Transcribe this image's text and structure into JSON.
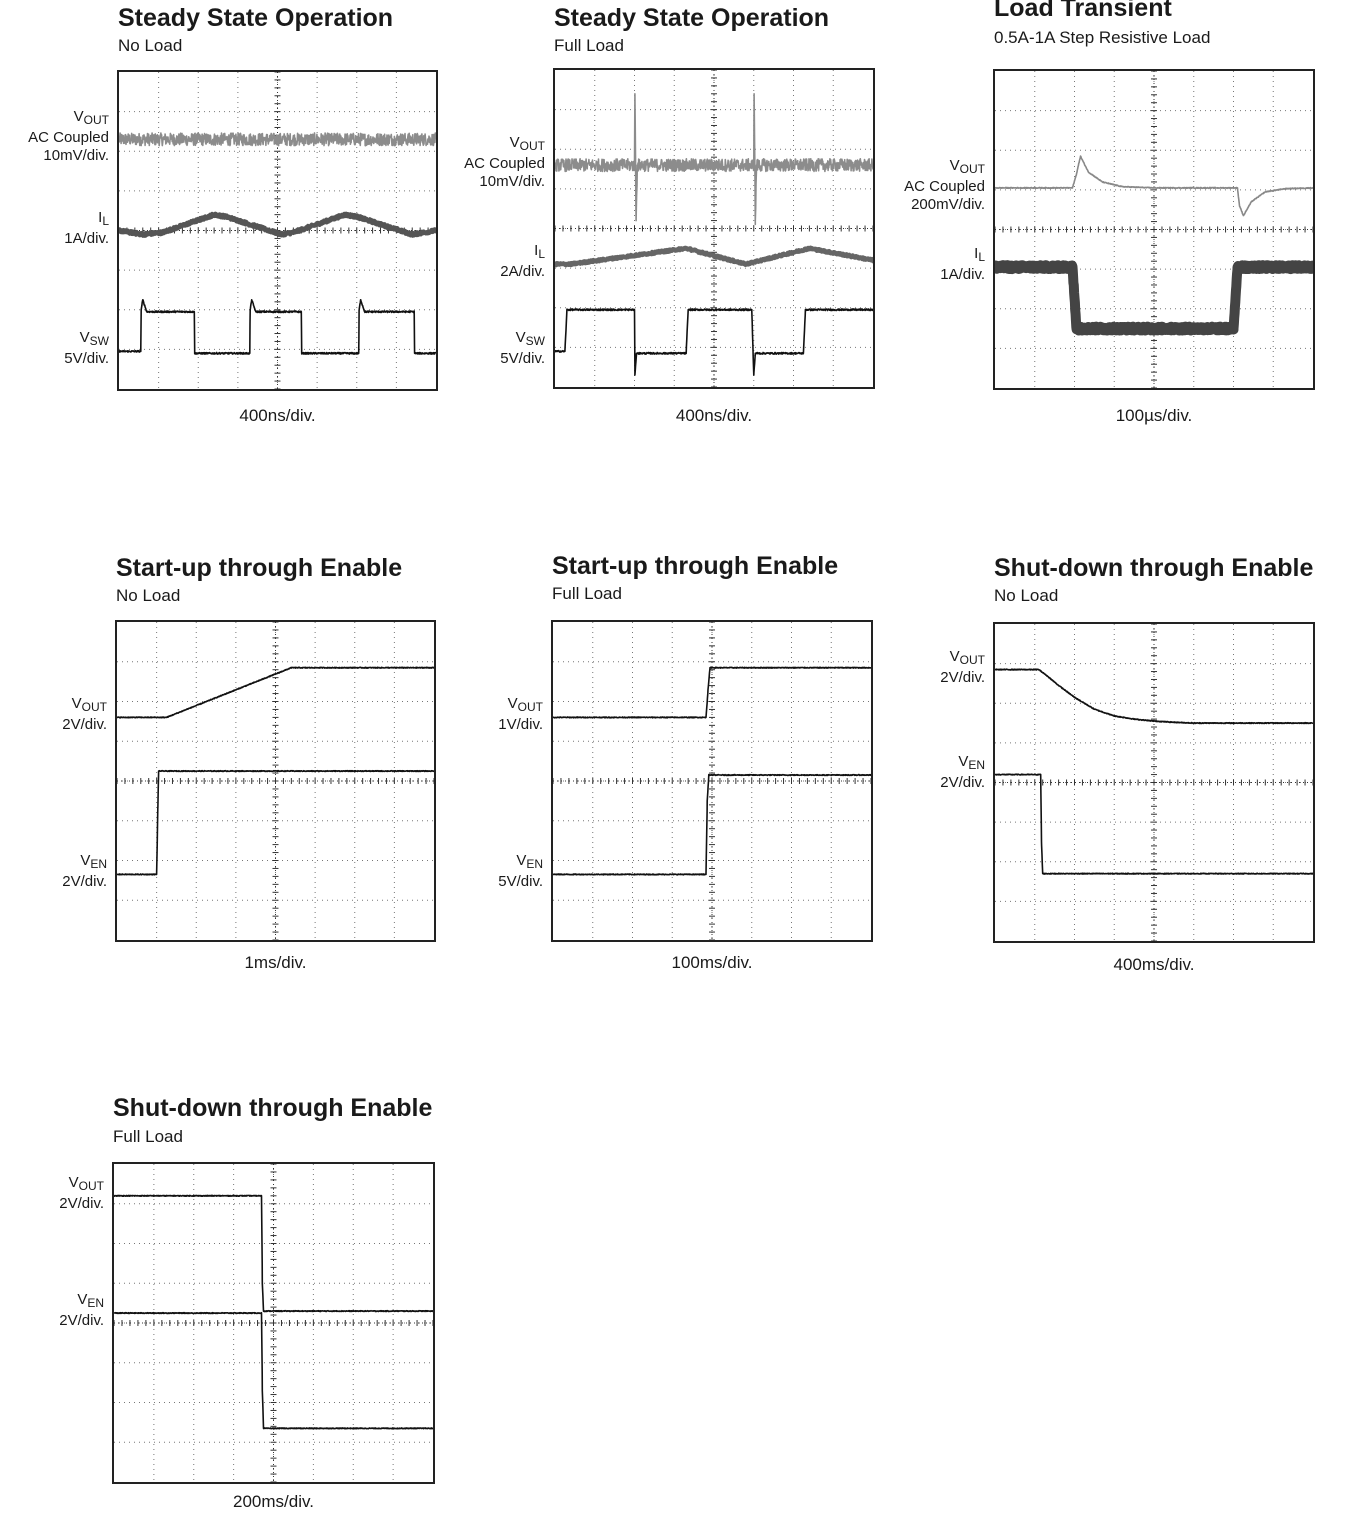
{
  "chart_data": [
    {
      "type": "line",
      "title": "Steady State Operation",
      "subtitle": "No Load",
      "timebase": "400ns/div.",
      "grid": true,
      "divisions": {
        "x": 8,
        "y": 8
      },
      "series": [
        {
          "name": "VOUT",
          "label_main": "V",
          "label_sub": "OUT",
          "label_lines": [
            "AC Coupled",
            "10mV/div."
          ],
          "color": "#8c8c8c",
          "noise": 0.16,
          "x": [
            0,
            8
          ],
          "y": [
            6.3,
            6.3
          ]
        },
        {
          "name": "IL",
          "label_main": "I",
          "label_sub": "L",
          "label_lines": [
            "1A/div."
          ],
          "color": "#555555",
          "noise": 0.04,
          "thick": 4,
          "x": [
            0,
            0.6,
            1.1,
            2.4,
            2.7,
            4.1,
            4.4,
            5.7,
            6.0,
            7.4,
            8
          ],
          "y": [
            4.0,
            3.9,
            3.95,
            4.4,
            4.35,
            3.9,
            3.95,
            4.4,
            4.35,
            3.9,
            4.0
          ]
        },
        {
          "name": "VSW",
          "label_main": "V",
          "label_sub": "SW",
          "label_lines": [
            "5V/div."
          ],
          "color": "#111111",
          "noise": 0.02,
          "x": [
            0,
            0.55,
            0.56,
            0.6,
            0.7,
            1.9,
            1.91,
            3.3,
            3.31,
            3.35,
            3.45,
            4.6,
            4.61,
            6.05,
            6.06,
            6.1,
            6.2,
            7.45,
            7.46,
            8
          ],
          "y": [
            0.95,
            0.95,
            2.0,
            2.25,
            1.95,
            1.95,
            0.9,
            0.9,
            2.0,
            2.25,
            1.95,
            1.95,
            0.9,
            0.9,
            2.0,
            2.25,
            1.95,
            1.95,
            0.9,
            0.9
          ]
        }
      ]
    },
    {
      "type": "line",
      "title": "Steady State Operation",
      "subtitle": "Full Load",
      "timebase": "400ns/div.",
      "grid": true,
      "divisions": {
        "x": 8,
        "y": 8
      },
      "series": [
        {
          "name": "VOUT",
          "label_main": "V",
          "label_sub": "OUT",
          "label_lines": [
            "AC Coupled",
            "10mV/div."
          ],
          "color": "#8c8c8c",
          "noise": 0.16,
          "x": [
            0,
            2.0,
            2.01,
            2.04,
            2.07,
            5.0,
            5.01,
            5.04,
            5.07,
            8
          ],
          "y": [
            5.6,
            5.6,
            7.4,
            4.2,
            5.6,
            5.6,
            7.4,
            4.2,
            5.6,
            5.6
          ]
        },
        {
          "name": "IL",
          "label_main": "I",
          "label_sub": "L",
          "label_lines": [
            "2A/div."
          ],
          "color": "#666666",
          "noise": 0.03,
          "thick": 4,
          "x": [
            0,
            0.4,
            3.3,
            4.8,
            6.4,
            8
          ],
          "y": [
            3.1,
            3.1,
            3.5,
            3.1,
            3.5,
            3.2
          ]
        },
        {
          "name": "VSW",
          "label_main": "V",
          "label_sub": "SW",
          "label_lines": [
            "5V/div."
          ],
          "color": "#111111",
          "noise": 0.02,
          "x": [
            0,
            0.25,
            0.3,
            2.0,
            2.01,
            2.05,
            3.3,
            3.35,
            4.95,
            5.0,
            5.04,
            6.25,
            6.3,
            8
          ],
          "y": [
            0.9,
            0.9,
            1.95,
            1.95,
            0.3,
            0.85,
            0.85,
            1.95,
            1.95,
            0.3,
            0.85,
            0.85,
            1.95,
            1.95
          ]
        }
      ]
    },
    {
      "type": "line",
      "title": "Load Transient",
      "subtitle": "0.5A-1A Step Resistive Load",
      "timebase": "100µs/div.",
      "grid": true,
      "divisions": {
        "x": 8,
        "y": 8
      },
      "series": [
        {
          "name": "VOUT",
          "label_main": "V",
          "label_sub": "OUT",
          "label_lines": [
            "AC Coupled",
            "200mV/div."
          ],
          "color": "#888888",
          "noise": 0.01,
          "x": [
            0,
            1.95,
            2.05,
            2.15,
            2.35,
            2.7,
            3.2,
            4.0,
            6.1,
            6.15,
            6.25,
            6.45,
            6.8,
            7.3,
            8
          ],
          "y": [
            5.05,
            5.05,
            5.4,
            5.85,
            5.45,
            5.2,
            5.08,
            5.05,
            5.05,
            4.6,
            4.35,
            4.7,
            4.95,
            5.03,
            5.05
          ]
        },
        {
          "name": "IL",
          "label_main": "I",
          "label_sub": "L",
          "label_lines": [
            "1A/div."
          ],
          "color": "#444444",
          "noise": 0.05,
          "thick": 10,
          "x": [
            0,
            1.95,
            2.05,
            6.0,
            6.1,
            8
          ],
          "y": [
            3.05,
            3.05,
            1.5,
            1.5,
            3.05,
            3.05
          ]
        }
      ]
    },
    {
      "type": "line",
      "title": "Start-up through Enable",
      "subtitle": "No Load",
      "timebase": "1ms/div.",
      "grid": true,
      "divisions": {
        "x": 8,
        "y": 8
      },
      "series": [
        {
          "name": "VOUT",
          "label_main": "V",
          "label_sub": "OUT",
          "label_lines": [
            "2V/div."
          ],
          "color": "#111111",
          "noise": 0.01,
          "x": [
            0,
            1.25,
            4.4,
            8
          ],
          "y": [
            5.6,
            5.6,
            6.85,
            6.85
          ]
        },
        {
          "name": "VEN",
          "label_main": "V",
          "label_sub": "EN",
          "label_lines": [
            "2V/div."
          ],
          "color": "#111111",
          "noise": 0.01,
          "x": [
            0,
            1.0,
            1.03,
            1.05,
            1.1,
            8
          ],
          "y": [
            1.65,
            1.65,
            3.3,
            4.25,
            4.25,
            4.25
          ]
        }
      ]
    },
    {
      "type": "line",
      "title": "Start-up through Enable",
      "subtitle": "Full Load",
      "timebase": "100ms/div.",
      "grid": true,
      "divisions": {
        "x": 8,
        "y": 8
      },
      "series": [
        {
          "name": "VOUT",
          "label_main": "V",
          "label_sub": "OUT",
          "label_lines": [
            "1V/div."
          ],
          "color": "#111111",
          "noise": 0.01,
          "x": [
            0,
            3.85,
            3.9,
            3.95,
            8
          ],
          "y": [
            5.6,
            5.6,
            6.3,
            6.85,
            6.85
          ]
        },
        {
          "name": "VEN",
          "label_main": "V",
          "label_sub": "EN",
          "label_lines": [
            "5V/div."
          ],
          "color": "#111111",
          "noise": 0.01,
          "x": [
            0,
            3.85,
            3.88,
            3.92,
            8
          ],
          "y": [
            1.65,
            1.65,
            3.5,
            4.15,
            4.15
          ]
        }
      ]
    },
    {
      "type": "line",
      "title": "Shut-down through Enable",
      "subtitle": "No Load",
      "timebase": "400ms/div.",
      "grid": true,
      "divisions": {
        "x": 8,
        "y": 8
      },
      "series": [
        {
          "name": "VOUT",
          "label_main": "V",
          "label_sub": "OUT",
          "label_lines": [
            "2V/div."
          ],
          "color": "#111111",
          "noise": 0.01,
          "x": [
            0,
            1.1,
            1.3,
            1.6,
            2.0,
            2.5,
            3.0,
            3.5,
            4.0,
            4.5,
            5.0,
            8
          ],
          "y": [
            6.85,
            6.85,
            6.7,
            6.45,
            6.15,
            5.85,
            5.68,
            5.6,
            5.55,
            5.52,
            5.5,
            5.5
          ]
        },
        {
          "name": "VEN",
          "label_main": "V",
          "label_sub": "EN",
          "label_lines": [
            "2V/div."
          ],
          "color": "#111111",
          "noise": 0.01,
          "x": [
            0,
            1.15,
            1.17,
            1.2,
            8
          ],
          "y": [
            4.2,
            4.2,
            2.5,
            1.7,
            1.7
          ]
        }
      ]
    },
    {
      "type": "line",
      "title": "Shut-down through Enable",
      "subtitle": "Full Load",
      "timebase": "200ms/div.",
      "grid": true,
      "divisions": {
        "x": 8,
        "y": 8
      },
      "series": [
        {
          "name": "VOUT",
          "label_main": "V",
          "label_sub": "OUT",
          "label_lines": [
            "2V/div."
          ],
          "color": "#111111",
          "noise": 0.01,
          "x": [
            0,
            3.7,
            3.72,
            3.75,
            8
          ],
          "y": [
            7.2,
            7.2,
            5.0,
            4.3,
            4.3
          ]
        },
        {
          "name": "VEN",
          "label_main": "V",
          "label_sub": "EN",
          "label_lines": [
            "2V/div."
          ],
          "color": "#111111",
          "noise": 0.01,
          "x": [
            0,
            3.7,
            3.72,
            3.75,
            8
          ],
          "y": [
            4.25,
            4.25,
            2.3,
            1.35,
            1.35
          ]
        }
      ]
    }
  ]
}
